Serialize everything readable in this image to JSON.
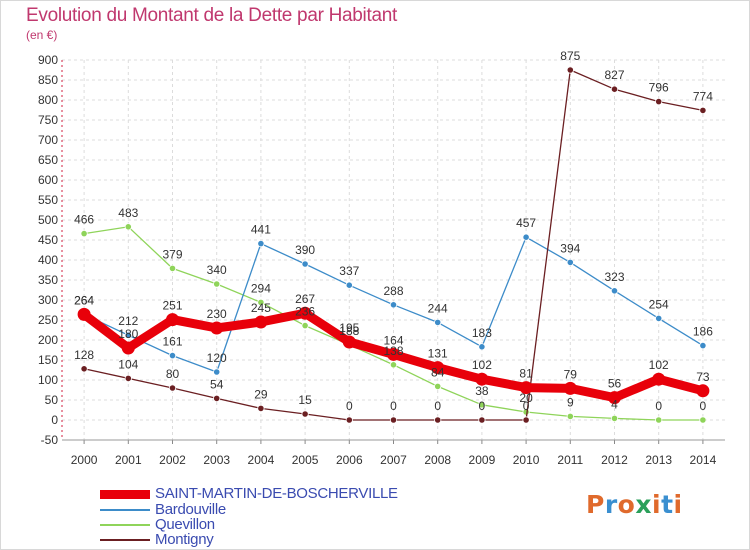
{
  "page": {
    "title": "Evolution du Montant de la Dette par Habitant",
    "subtitle": "(en €)"
  },
  "logo": {
    "text": "Proxiti",
    "colors": [
      "#e06a2c",
      "#3a8fd0",
      "#e06a2c",
      "#2aa05a",
      "#e06a2c",
      "#3a8fd0",
      "#e06a2c"
    ]
  },
  "chart_data": {
    "type": "line",
    "x": [
      2000,
      2001,
      2002,
      2003,
      2004,
      2005,
      2006,
      2007,
      2008,
      2009,
      2010,
      2011,
      2012,
      2013,
      2014
    ],
    "ylim": [
      -50,
      900
    ],
    "yticks": [
      -50,
      0,
      50,
      100,
      150,
      200,
      250,
      300,
      350,
      400,
      450,
      500,
      550,
      600,
      650,
      700,
      750,
      800,
      850,
      900
    ],
    "grid": true,
    "legend": "bottom-left",
    "series": [
      {
        "name": "SAINT-MARTIN-DE-BOSCHERVILLE",
        "color": "#e8000a",
        "values": [
          264,
          180,
          251,
          230,
          245,
          267,
          195,
          164,
          131,
          102,
          81,
          79,
          56,
          102,
          73
        ]
      },
      {
        "name": "Bardouville",
        "color": "#3d8cc9",
        "values": [
          264,
          212,
          161,
          120,
          441,
          390,
          337,
          288,
          244,
          183,
          457,
          394,
          323,
          254,
          186
        ]
      },
      {
        "name": "Quevillon",
        "color": "#8fd45a",
        "values": [
          466,
          483,
          379,
          340,
          294,
          236,
          188,
          138,
          84,
          38,
          20,
          9,
          4,
          0,
          0
        ]
      },
      {
        "name": "Montigny",
        "color": "#6b1f22",
        "values": [
          128,
          104,
          80,
          54,
          29,
          15,
          0,
          0,
          0,
          0,
          0,
          875,
          827,
          796,
          774
        ]
      }
    ]
  }
}
